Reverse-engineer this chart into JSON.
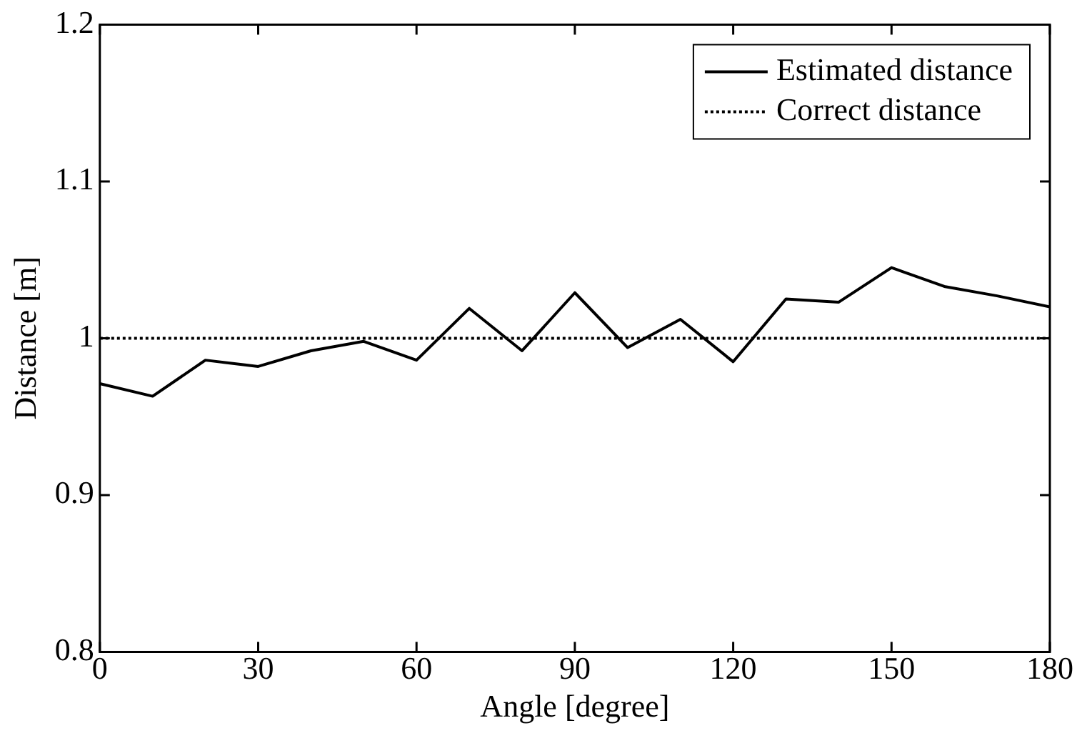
{
  "chart_data": {
    "type": "line",
    "xlabel": "Angle [degree]",
    "ylabel": "Distance [m]",
    "xlim": [
      0,
      180
    ],
    "xticks": [
      0,
      30,
      60,
      90,
      120,
      150,
      180
    ],
    "ylim": [
      0.8,
      1.2
    ],
    "yticks": [
      0.8,
      0.9,
      1,
      1.1,
      1.2
    ],
    "grid": false,
    "legend": "top right",
    "marker": "none",
    "series": [
      {
        "name": "Estimated distance",
        "color": "#000000",
        "line_style": "solid",
        "x": [
          0,
          10,
          20,
          30,
          40,
          50,
          60,
          70,
          80,
          90,
          100,
          110,
          120,
          130,
          140,
          150,
          160,
          170,
          180
        ],
        "values": [
          0.971,
          0.963,
          0.986,
          0.982,
          0.992,
          0.998,
          0.986,
          1.019,
          0.992,
          1.029,
          0.994,
          1.012,
          0.985,
          1.025,
          1.023,
          1.045,
          1.033,
          1.027,
          1.02
        ]
      },
      {
        "name": "Correct distance",
        "color": "#000000",
        "line_style": "dotted",
        "x": [
          0,
          180
        ],
        "values": [
          1,
          1
        ]
      }
    ]
  }
}
